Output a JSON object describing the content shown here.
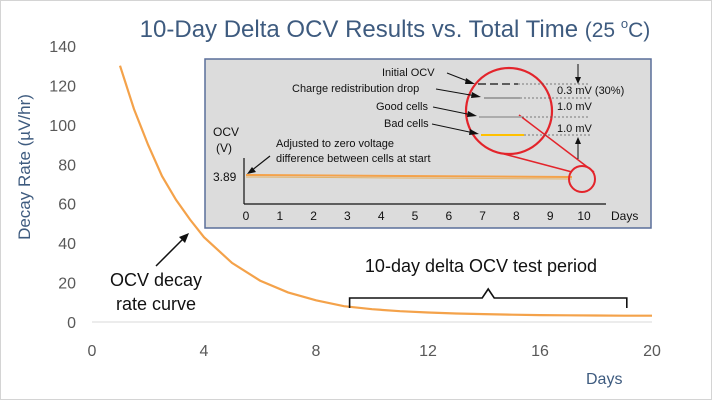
{
  "chart_data": {
    "type": "line",
    "title": "10-Day Delta OCV Results vs. Total Time",
    "title_suffix": "(25 ",
    "title_deg": "o",
    "title_unit": "C)",
    "ylabel": "Decay Rate (µV/hr)",
    "xlabel": "Days",
    "xlim": [
      0,
      20
    ],
    "ylim": [
      0,
      140
    ],
    "x_ticks": [
      "0",
      "4",
      "8",
      "12",
      "16",
      "20"
    ],
    "y_ticks": [
      "0",
      "20",
      "40",
      "60",
      "80",
      "100",
      "120",
      "140"
    ],
    "series": [
      {
        "name": "OCV decay rate curve",
        "color": "#F4A24A",
        "points": [
          [
            1.0,
            130
          ],
          [
            1.5,
            108
          ],
          [
            2,
            90
          ],
          [
            2.5,
            74
          ],
          [
            3,
            62
          ],
          [
            3.5,
            52
          ],
          [
            4,
            43
          ],
          [
            5,
            30
          ],
          [
            6,
            21
          ],
          [
            7,
            15
          ],
          [
            8,
            11
          ],
          [
            9,
            8
          ],
          [
            10,
            6.5
          ],
          [
            11,
            5.5
          ],
          [
            12,
            4.8
          ],
          [
            13,
            4.3
          ],
          [
            14,
            4
          ],
          [
            15,
            3.7
          ],
          [
            16,
            3.5
          ],
          [
            17,
            3.4
          ],
          [
            18,
            3.3
          ],
          [
            19,
            3.2
          ],
          [
            20,
            3.2
          ]
        ]
      }
    ],
    "annotations": {
      "curve_label_line1": "OCV decay",
      "curve_label_line2": "rate curve",
      "period_label": "10-day delta OCV test period",
      "period_range": [
        9.2,
        19.1
      ]
    },
    "inset": {
      "type": "line",
      "ylabel_line1": "OCV",
      "ylabel_line2": "(V)",
      "y_value_label": "3.89",
      "xlabel": "Days",
      "x_ticks": [
        "0",
        "1",
        "2",
        "3",
        "4",
        "5",
        "6",
        "7",
        "8",
        "9",
        "10"
      ],
      "adjusted_line1": "Adjusted to zero voltage",
      "adjusted_line2": "difference between cells at start",
      "labels": {
        "initial": "Initial OCV",
        "redistribution": "Charge redistribution drop",
        "good": "Good cells",
        "bad": "Bad cells"
      },
      "measurements": [
        "0.3 mV (30%)",
        "1.0 mV",
        "1.0 mV"
      ]
    },
    "colors": {
      "curve": "#F4A24A",
      "title": "#3E5B7F",
      "axis_text": "#595959",
      "accent_red": "#E3242B",
      "inset_bg": "#DCDCDC",
      "inset_border": "#5A6E9A",
      "bad_cells": "#FFC000"
    }
  }
}
